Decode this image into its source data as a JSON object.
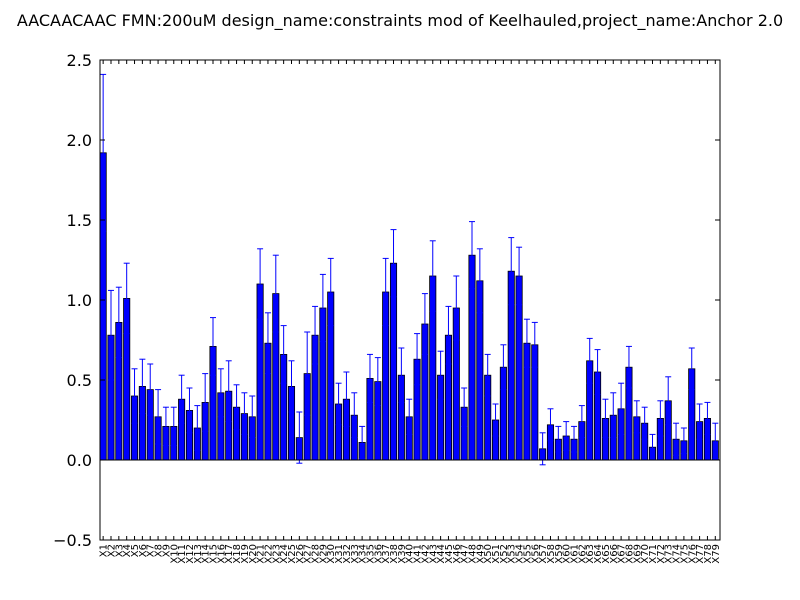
{
  "chart_data": {
    "type": "bar",
    "title": "AACAACAAC  FMN:200uM  design_name:constraints mod of Keelhauled,project_name:Anchor 2.0",
    "xlabel": "",
    "ylabel": "",
    "ylim": [
      -0.5,
      2.5
    ],
    "yticks": [
      "−0.5",
      "0.0",
      "0.5",
      "1.0",
      "1.5",
      "2.0",
      "2.5"
    ],
    "ytick_values": [
      -0.5,
      0.0,
      0.5,
      1.0,
      1.5,
      2.0,
      2.5
    ],
    "grid": false,
    "bar_color": "#0000ff",
    "error_color": "#0000ff",
    "categories": [
      "X1",
      "X2",
      "X3",
      "X4",
      "X5",
      "X6",
      "X7",
      "X8",
      "X9",
      "X10",
      "X11",
      "X12",
      "X13",
      "X14",
      "X15",
      "X16",
      "X17",
      "X18",
      "X19",
      "X20",
      "X21",
      "X22",
      "X23",
      "X24",
      "X25",
      "X26",
      "X27",
      "X28",
      "X29",
      "X30",
      "X31",
      "X32",
      "X33",
      "X34",
      "X35",
      "X36",
      "X37",
      "X38",
      "X39",
      "X40",
      "X41",
      "X42",
      "X43",
      "X44",
      "X45",
      "X46",
      "X47",
      "X48",
      "X49",
      "X50",
      "X51",
      "X52",
      "X53",
      "X54",
      "X55",
      "X56",
      "X57",
      "X58",
      "X59",
      "X60",
      "X61",
      "X62",
      "X63",
      "X64",
      "X65",
      "X66",
      "X67",
      "X68",
      "X69",
      "X70",
      "X71",
      "X72",
      "X73",
      "X74",
      "X75",
      "X76",
      "X77",
      "X78",
      "X79"
    ],
    "values": [
      1.92,
      0.78,
      0.86,
      1.01,
      0.4,
      0.46,
      0.44,
      0.27,
      0.21,
      0.21,
      0.38,
      0.31,
      0.2,
      0.36,
      0.71,
      0.42,
      0.43,
      0.33,
      0.29,
      0.27,
      1.1,
      0.73,
      1.04,
      0.66,
      0.46,
      0.14,
      0.54,
      0.78,
      0.95,
      1.05,
      0.35,
      0.38,
      0.28,
      0.11,
      0.51,
      0.49,
      1.05,
      1.23,
      0.53,
      0.27,
      0.63,
      0.85,
      1.15,
      0.53,
      0.78,
      0.95,
      0.33,
      1.28,
      1.12,
      0.53,
      0.25,
      0.58,
      1.18,
      1.15,
      0.73,
      0.72,
      0.07,
      0.22,
      0.13,
      0.15,
      0.13,
      0.24,
      0.62,
      0.55,
      0.26,
      0.28,
      0.32,
      0.58,
      0.27,
      0.23,
      0.08,
      0.26,
      0.37,
      0.13,
      0.12,
      0.57,
      0.24,
      0.26,
      0.12
    ],
    "errors": [
      0.49,
      0.28,
      0.22,
      0.22,
      0.17,
      0.17,
      0.16,
      0.17,
      0.12,
      0.12,
      0.15,
      0.14,
      0.14,
      0.18,
      0.18,
      0.15,
      0.19,
      0.14,
      0.13,
      0.13,
      0.22,
      0.19,
      0.24,
      0.18,
      0.16,
      0.16,
      0.26,
      0.18,
      0.21,
      0.21,
      0.13,
      0.17,
      0.14,
      0.1,
      0.15,
      0.15,
      0.21,
      0.21,
      0.17,
      0.11,
      0.16,
      0.19,
      0.22,
      0.15,
      0.18,
      0.2,
      0.12,
      0.21,
      0.2,
      0.13,
      0.1,
      0.14,
      0.21,
      0.18,
      0.15,
      0.14,
      0.1,
      0.1,
      0.08,
      0.09,
      0.08,
      0.1,
      0.14,
      0.14,
      0.12,
      0.14,
      0.16,
      0.13,
      0.1,
      0.1,
      0.08,
      0.11,
      0.15,
      0.1,
      0.08,
      0.13,
      0.11,
      0.1,
      0.11
    ]
  }
}
